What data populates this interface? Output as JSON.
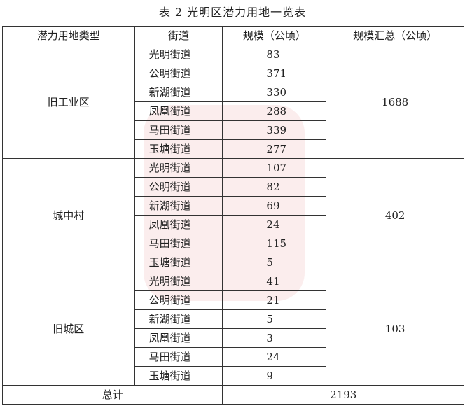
{
  "title": "表 2 光明区潜力用地一览表",
  "headers": [
    "潜力用地类型",
    "街道",
    "规模（公顷）",
    "规模汇总（公顷）"
  ],
  "groups": [
    {
      "type": "旧工业区",
      "total": "1688",
      "rows": [
        [
          "光明街道",
          "83"
        ],
        [
          "公明街道",
          "371"
        ],
        [
          "新湖街道",
          "330"
        ],
        [
          "凤凰街道",
          "288"
        ],
        [
          "马田街道",
          "339"
        ],
        [
          "玉塘街道",
          "277"
        ]
      ]
    },
    {
      "type": "城中村",
      "total": "402",
      "rows": [
        [
          "光明街道",
          "107"
        ],
        [
          "公明街道",
          "82"
        ],
        [
          "新湖街道",
          "69"
        ],
        [
          "凤凰街道",
          "24"
        ],
        [
          "马田街道",
          "115"
        ],
        [
          "玉塘街道",
          "5"
        ]
      ]
    },
    {
      "type": "旧城区",
      "total": "103",
      "rows": [
        [
          "光明街道",
          "41"
        ],
        [
          "公明街道",
          "21"
        ],
        [
          "新湖街道",
          "5"
        ],
        [
          "凤凰街道",
          "3"
        ],
        [
          "马田街道",
          "24"
        ],
        [
          "玉塘街道",
          "9"
        ]
      ]
    }
  ],
  "footer": {
    "label": "总计",
    "value": "2193"
  },
  "watermark_color": "#dc5050"
}
